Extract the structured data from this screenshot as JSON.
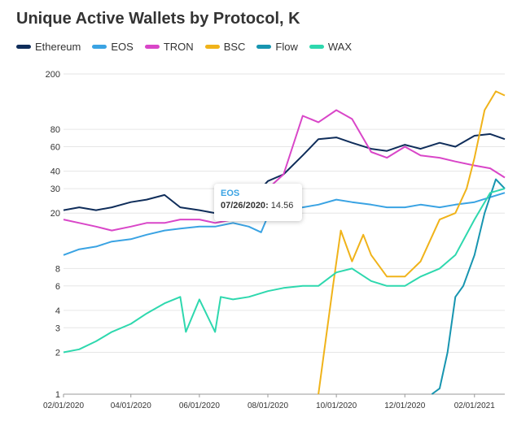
{
  "title": "Unique Active Wallets by Protocol, K",
  "legend": [
    {
      "label": "Ethereum",
      "color": "#0f2d5a"
    },
    {
      "label": "EOS",
      "color": "#3aa3e3"
    },
    {
      "label": "TRON",
      "color": "#d946c8"
    },
    {
      "label": "BSC",
      "color": "#f0b31a"
    },
    {
      "label": "Flow",
      "color": "#1795b0"
    },
    {
      "label": "WAX",
      "color": "#2ed8ae"
    }
  ],
  "tooltip": {
    "series": "EOS",
    "date": "07/26/2020",
    "value": "14.56"
  },
  "chart_data": {
    "type": "line",
    "title": "Unique Active Wallets by Protocol, K",
    "y_scale": "log",
    "ylim": [
      1,
      200
    ],
    "y_ticks": [
      1,
      2,
      3,
      4,
      6,
      8,
      20,
      30,
      40,
      60,
      80,
      200
    ],
    "x_ticks": [
      "02/01/2020",
      "04/01/2020",
      "06/01/2020",
      "08/01/2020",
      "10/01/2020",
      "12/01/2020",
      "02/01/2021"
    ],
    "xlim": [
      "02/01/2020",
      "02/28/2021"
    ],
    "grid": "horizontal",
    "legend_position": "top-left",
    "series": [
      {
        "name": "Ethereum",
        "color": "#0f2d5a",
        "x": [
          "02/01/2020",
          "02/15/2020",
          "03/01/2020",
          "03/15/2020",
          "04/01/2020",
          "04/15/2020",
          "05/01/2020",
          "05/15/2020",
          "06/01/2020",
          "06/15/2020",
          "07/01/2020",
          "07/15/2020",
          "08/01/2020",
          "08/15/2020",
          "09/01/2020",
          "09/15/2020",
          "10/01/2020",
          "10/15/2020",
          "11/01/2020",
          "11/15/2020",
          "12/01/2020",
          "12/15/2020",
          "01/01/2021",
          "01/15/2021",
          "02/01/2021",
          "02/15/2021",
          "02/28/2021"
        ],
        "values": [
          21,
          22,
          21,
          22,
          24,
          25,
          27,
          22,
          21,
          20,
          22,
          24,
          34,
          38,
          52,
          68,
          70,
          64,
          58,
          56,
          62,
          58,
          64,
          60,
          72,
          74,
          68
        ]
      },
      {
        "name": "EOS",
        "color": "#3aa3e3",
        "x": [
          "02/01/2020",
          "02/15/2020",
          "03/01/2020",
          "03/15/2020",
          "04/01/2020",
          "04/15/2020",
          "05/01/2020",
          "05/15/2020",
          "06/01/2020",
          "06/15/2020",
          "07/01/2020",
          "07/15/2020",
          "07/26/2020",
          "08/01/2020",
          "08/15/2020",
          "09/01/2020",
          "09/15/2020",
          "10/01/2020",
          "10/15/2020",
          "11/01/2020",
          "11/15/2020",
          "12/01/2020",
          "12/15/2020",
          "01/01/2021",
          "01/15/2021",
          "02/01/2021",
          "02/15/2021",
          "02/28/2021"
        ],
        "values": [
          10,
          11,
          11.5,
          12.5,
          13,
          14,
          15,
          15.5,
          16,
          16,
          17,
          16,
          14.56,
          19,
          20,
          22,
          23,
          25,
          24,
          23,
          22,
          22,
          23,
          22,
          23,
          24,
          26,
          28
        ]
      },
      {
        "name": "TRON",
        "color": "#d946c8",
        "x": [
          "02/01/2020",
          "02/15/2020",
          "03/01/2020",
          "03/15/2020",
          "04/01/2020",
          "04/15/2020",
          "05/01/2020",
          "05/15/2020",
          "06/01/2020",
          "06/15/2020",
          "07/01/2020",
          "07/15/2020",
          "08/01/2020",
          "08/15/2020",
          "09/01/2020",
          "09/15/2020",
          "10/01/2020",
          "10/15/2020",
          "11/01/2020",
          "11/15/2020",
          "12/01/2020",
          "12/15/2020",
          "01/01/2021",
          "01/15/2021",
          "02/01/2021",
          "02/15/2021",
          "02/28/2021"
        ],
        "values": [
          18,
          17,
          16,
          15,
          16,
          17,
          17,
          18,
          18,
          17,
          18,
          22,
          30,
          38,
          100,
          90,
          110,
          95,
          55,
          50,
          60,
          52,
          50,
          47,
          44,
          42,
          36
        ]
      },
      {
        "name": "BSC",
        "color": "#f0b31a",
        "x": [
          "09/15/2020",
          "09/20/2020",
          "09/28/2020",
          "10/05/2020",
          "10/15/2020",
          "10/25/2020",
          "11/01/2020",
          "11/15/2020",
          "12/01/2020",
          "12/15/2020",
          "01/01/2021",
          "01/15/2021",
          "01/25/2021",
          "02/01/2021",
          "02/10/2021",
          "02/20/2021",
          "02/28/2021"
        ],
        "values": [
          1,
          2,
          6,
          15,
          9,
          14,
          10,
          7,
          7,
          9,
          18,
          20,
          30,
          50,
          110,
          150,
          140
        ]
      },
      {
        "name": "Flow",
        "color": "#1795b0",
        "x": [
          "12/25/2020",
          "01/01/2021",
          "01/08/2021",
          "01/15/2021",
          "01/22/2021",
          "02/01/2021",
          "02/10/2021",
          "02/20/2021",
          "02/28/2021"
        ],
        "values": [
          1,
          1.1,
          2,
          5,
          6,
          10,
          20,
          35,
          30
        ]
      },
      {
        "name": "WAX",
        "color": "#2ed8ae",
        "x": [
          "02/01/2020",
          "02/15/2020",
          "03/01/2020",
          "03/15/2020",
          "04/01/2020",
          "04/15/2020",
          "05/01/2020",
          "05/15/2020",
          "05/20/2020",
          "06/01/2020",
          "06/15/2020",
          "06/20/2020",
          "07/01/2020",
          "07/15/2020",
          "08/01/2020",
          "08/15/2020",
          "09/01/2020",
          "09/15/2020",
          "10/01/2020",
          "10/15/2020",
          "11/01/2020",
          "11/15/2020",
          "12/01/2020",
          "12/15/2020",
          "01/01/2021",
          "01/15/2021",
          "02/01/2021",
          "02/15/2021",
          "02/28/2021"
        ],
        "values": [
          2,
          2.1,
          2.4,
          2.8,
          3.2,
          3.8,
          4.5,
          5,
          2.8,
          4.8,
          2.8,
          5,
          4.8,
          5,
          5.5,
          5.8,
          6,
          6,
          7.5,
          8,
          6.5,
          6,
          6,
          7,
          8,
          10,
          18,
          28,
          30
        ]
      }
    ]
  }
}
